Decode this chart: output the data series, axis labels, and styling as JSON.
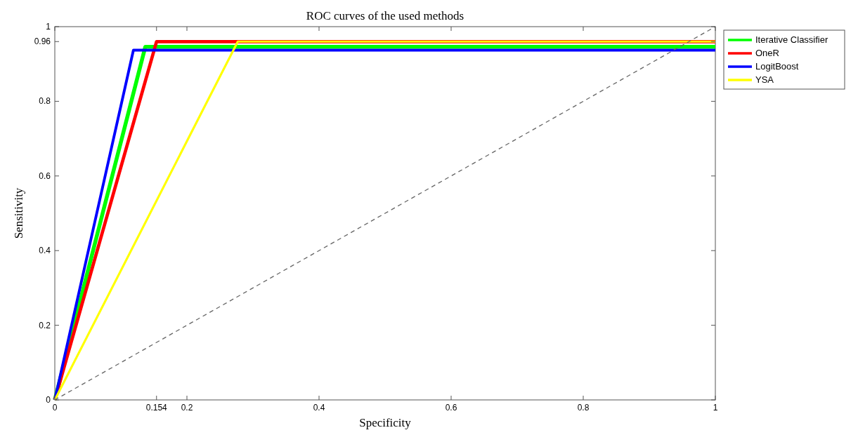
{
  "chart_data": {
    "type": "line",
    "title": "ROC curves of the used methods",
    "xlabel": "Specificity",
    "ylabel": "Sensitivity",
    "xlim": [
      0,
      1
    ],
    "ylim": [
      0,
      1
    ],
    "xticks": [
      0,
      0.154,
      0.2,
      0.4,
      0.6,
      0.8,
      1
    ],
    "yticks": [
      0,
      0.2,
      0.4,
      0.6,
      0.8,
      0.96,
      1
    ],
    "grid": false,
    "legend": "right",
    "marker": "none",
    "line_style": "solid",
    "series": [
      {
        "name": "Iterative Classifier",
        "color": "#00ff00",
        "x": [
          0,
          0.137,
          1
        ],
        "values": [
          0,
          0.946,
          0.946
        ]
      },
      {
        "name": "OneR",
        "color": "#ff0000",
        "x": [
          0,
          0.154,
          1
        ],
        "values": [
          0,
          0.96,
          0.96
        ]
      },
      {
        "name": "LogitBoost",
        "color": "#0000ff",
        "x": [
          0,
          0.119,
          1
        ],
        "values": [
          0,
          0.937,
          0.937
        ]
      },
      {
        "name": "YSA",
        "color": "#ffff00",
        "x": [
          0,
          0.277,
          1
        ],
        "values": [
          0,
          0.96,
          0.96
        ]
      },
      {
        "color": "#666666",
        "x": [
          0,
          1
        ],
        "values": [
          0,
          1
        ],
        "line_style": "dashed"
      }
    ]
  }
}
